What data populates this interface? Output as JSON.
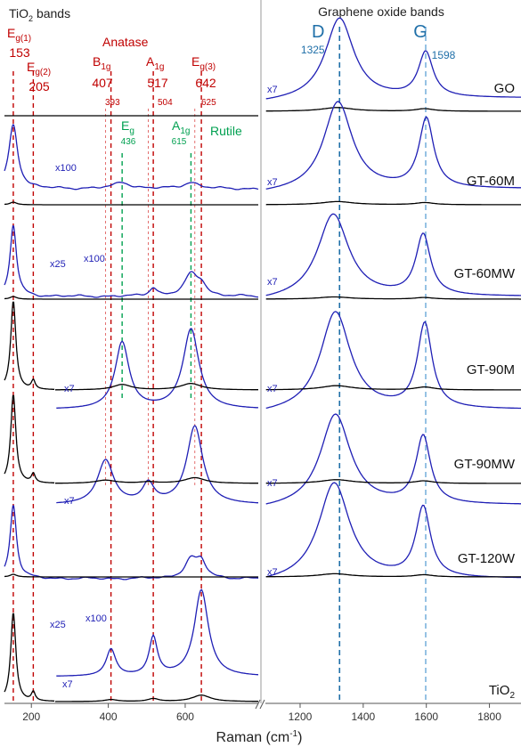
{
  "chart_data": {
    "type": "line",
    "xlabel_main": "Raman (cm",
    "xlabel_sup": "-1",
    "xlabel_end": ")",
    "left_panel": {
      "title_main": "TiO",
      "title_sub": "2",
      "title_end": " bands",
      "xlim": [
        130,
        790
      ],
      "xticks": [
        200,
        400,
        600
      ],
      "anatase_label": "Anatase",
      "rutile_label": "Rutile",
      "anatase_lines": [
        {
          "pos": 153,
          "sym": "E",
          "sub": "g(1)",
          "value": "153"
        },
        {
          "pos": 205,
          "sym": "E",
          "sub": "g(2)",
          "value": "205"
        },
        {
          "pos": 407,
          "sym": "B",
          "sub": "1g",
          "value": "407"
        },
        {
          "pos": 517,
          "sym": "A",
          "sub": "1g",
          "value": "517"
        },
        {
          "pos": 642,
          "sym": "E",
          "sub": "g(3)",
          "value": "642"
        }
      ],
      "shifted_lines": [
        {
          "pos": 393,
          "value": "393"
        },
        {
          "pos": 504,
          "value": "504"
        },
        {
          "pos": 625,
          "value": "625"
        }
      ],
      "rutile_lines": [
        {
          "pos": 436,
          "sym": "E",
          "sub": "g",
          "value": "436"
        },
        {
          "pos": 615,
          "sym": "A",
          "sub": "1g",
          "value": "615"
        }
      ]
    },
    "right_panel": {
      "title": "Graphene oxide bands",
      "xlim": [
        1090,
        1900
      ],
      "xticks": [
        1200,
        1400,
        1600,
        1800
      ],
      "bands": [
        {
          "pos": 1325,
          "label": "D",
          "value": "1325"
        },
        {
          "pos": 1598,
          "label": "G",
          "value": "1598"
        }
      ]
    },
    "series": [
      {
        "name": "GO",
        "name_sub": "",
        "left_annotations": [],
        "right_multiplier": "x7",
        "left_peaks": [],
        "left_noise": false,
        "right_peaks": [
          [
            1325,
            1.0,
            55
          ],
          [
            1598,
            0.55,
            28
          ]
        ],
        "black_peaks": [
          [
            1318,
            0.3,
            60
          ],
          [
            1595,
            0.2,
            35
          ]
        ]
      },
      {
        "name": "GT-60M",
        "name_sub": "",
        "left_annotations": [
          "x100"
        ],
        "right_multiplier": "x7",
        "left_peaks": [
          [
            153,
            1.0,
            14
          ],
          [
            436,
            0.1,
            25
          ],
          [
            615,
            0.1,
            25
          ]
        ],
        "left_noise": true,
        "right_peaks": [
          [
            1320,
            1.0,
            55
          ],
          [
            1600,
            0.78,
            28
          ]
        ],
        "black_peaks": [
          [
            1318,
            0.3,
            60
          ],
          [
            1595,
            0.2,
            35
          ]
        ]
      },
      {
        "name": "GT-60MW",
        "name_sub": "",
        "left_annotations": [
          "x25",
          "x100"
        ],
        "right_multiplier": "x7",
        "left_peaks": [
          [
            153,
            1.0,
            10
          ],
          [
            517,
            0.12,
            12
          ],
          [
            615,
            0.3,
            20
          ],
          [
            642,
            0.15,
            15
          ]
        ],
        "left_noise": true,
        "right_peaks": [
          [
            1305,
            1.0,
            60
          ],
          [
            1590,
            0.72,
            28
          ]
        ],
        "black_peaks": [
          [
            1308,
            0.25,
            60
          ],
          [
            1592,
            0.18,
            35
          ]
        ]
      },
      {
        "name": "GT-90M",
        "name_sub": "",
        "left_annotations": [
          "x7"
        ],
        "right_multiplier": "x7",
        "left_peaks": [
          [
            153,
            1.0,
            14
          ],
          [
            436,
            0.75,
            22
          ],
          [
            615,
            0.9,
            25
          ]
        ],
        "left_noise": false,
        "right_peaks": [
          [
            1312,
            1.0,
            58
          ],
          [
            1595,
            0.85,
            28
          ]
        ],
        "black_peaks": [
          [
            1315,
            0.3,
            60
          ],
          [
            1595,
            0.2,
            35
          ]
        ]
      },
      {
        "name": "GT-90MW",
        "name_sub": "",
        "left_annotations": [
          "x7"
        ],
        "right_multiplier": "x7",
        "left_peaks": [
          [
            153,
            1.0,
            10
          ],
          [
            393,
            0.45,
            25
          ],
          [
            504,
            0.2,
            18
          ],
          [
            625,
            0.8,
            25
          ]
        ],
        "left_noise": false,
        "right_peaks": [
          [
            1312,
            1.0,
            58
          ],
          [
            1590,
            0.73,
            28
          ]
        ],
        "black_peaks": [
          [
            1315,
            0.3,
            60
          ],
          [
            1592,
            0.2,
            35
          ]
        ]
      },
      {
        "name": "GT-120W",
        "name_sub": "",
        "left_annotations": [
          "x25",
          "x100"
        ],
        "right_multiplier": "x7",
        "left_peaks": [
          [
            153,
            1.0,
            10
          ],
          [
            615,
            0.25,
            20
          ],
          [
            642,
            0.2,
            15
          ]
        ],
        "left_noise": true,
        "right_peaks": [
          [
            1308,
            1.0,
            60
          ],
          [
            1590,
            0.72,
            28
          ]
        ],
        "black_peaks": [
          [
            1310,
            0.3,
            60
          ],
          [
            1592,
            0.2,
            35
          ]
        ]
      },
      {
        "name": "TiO",
        "name_sub": "2",
        "left_annotations": [
          "x7"
        ],
        "right_multiplier": "",
        "left_peaks": [
          [
            153,
            1.0,
            12
          ],
          [
            407,
            0.28,
            15
          ],
          [
            517,
            0.4,
            13
          ],
          [
            642,
            0.9,
            22
          ]
        ],
        "left_noise": false,
        "right_peaks": [],
        "black_peaks": []
      }
    ]
  }
}
